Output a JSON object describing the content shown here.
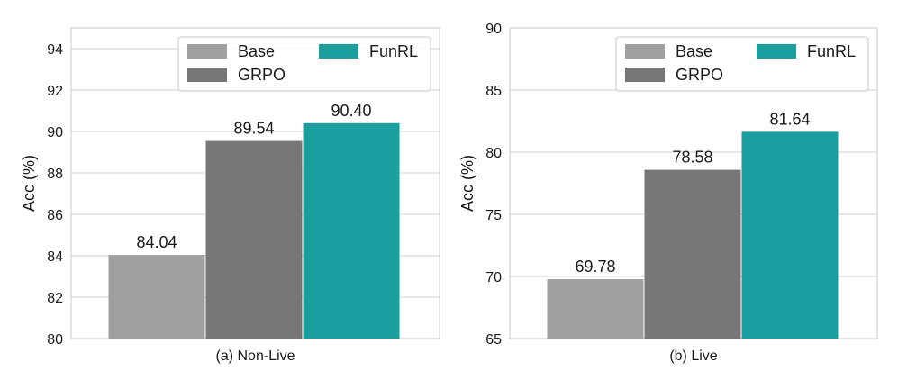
{
  "colors": {
    "Base": "#a0a0a0",
    "GRPO": "#777777",
    "FunRL": "#1a9e9e",
    "grid": "#d0d0d0",
    "frame": "#c8c8c8"
  },
  "chart_data": [
    {
      "type": "bar",
      "caption": "(a) Non-Live",
      "ylabel": "Acc (%)",
      "ylim": [
        80,
        95
      ],
      "yticks": [
        80,
        82,
        84,
        86,
        88,
        90,
        92,
        94
      ],
      "categories": [
        "(a) Non-Live"
      ],
      "series": [
        {
          "name": "Base",
          "values": [
            84.04
          ],
          "labels": [
            "84.04"
          ]
        },
        {
          "name": "GRPO",
          "values": [
            89.54
          ],
          "labels": [
            "89.54"
          ]
        },
        {
          "name": "FunRL",
          "values": [
            90.4
          ],
          "labels": [
            "90.40"
          ]
        }
      ],
      "grid": true,
      "legend": "top-right"
    },
    {
      "type": "bar",
      "caption": "(b) Live",
      "ylabel": "Acc (%)",
      "ylim": [
        65,
        90
      ],
      "yticks": [
        65,
        70,
        75,
        80,
        85,
        90
      ],
      "categories": [
        "(b) Live"
      ],
      "series": [
        {
          "name": "Base",
          "values": [
            69.78
          ],
          "labels": [
            "69.78"
          ]
        },
        {
          "name": "GRPO",
          "values": [
            78.58
          ],
          "labels": [
            "78.58"
          ]
        },
        {
          "name": "FunRL",
          "values": [
            81.64
          ],
          "labels": [
            "81.64"
          ]
        }
      ],
      "grid": true,
      "legend": "top-right"
    }
  ]
}
